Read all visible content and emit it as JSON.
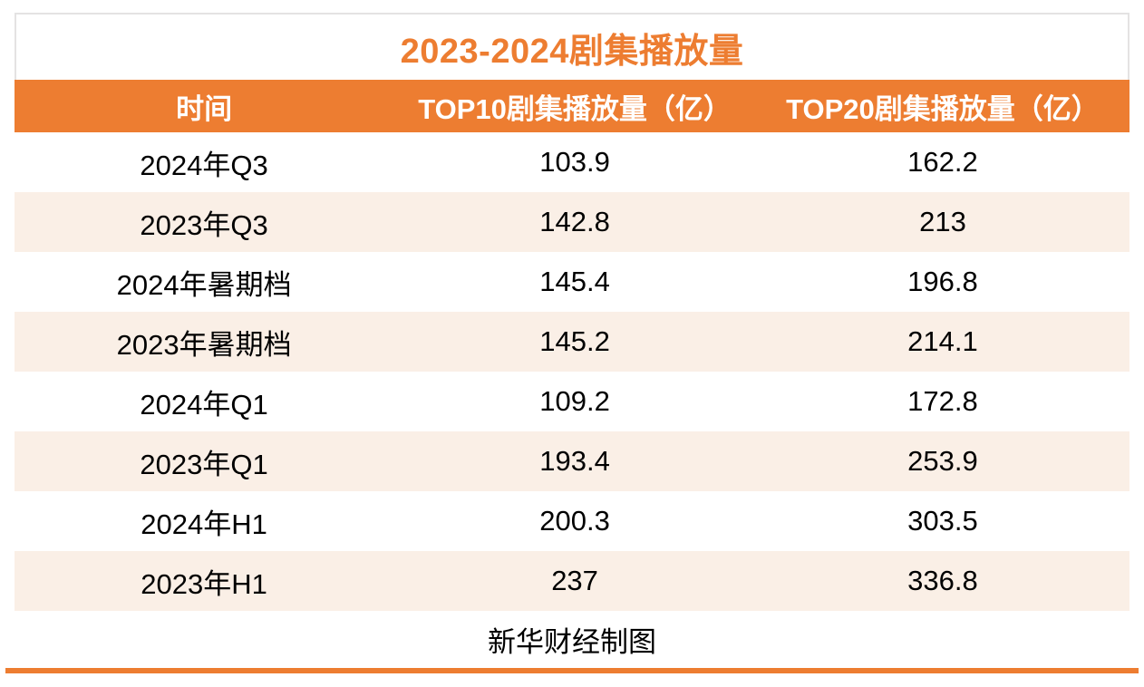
{
  "title": "2023-2024剧集播放量",
  "footer_note": "新华财经制图",
  "colors": {
    "accent_orange": "#ed7d31",
    "banded_row": "#faefe6",
    "header_text": "#ffffff",
    "body_text": "#000000",
    "title_border": "#e4e3e3"
  },
  "chart_data": {
    "type": "table",
    "title": "2023-2024剧集播放量",
    "columns": [
      "时间",
      "TOP10剧集播放量（亿）",
      "TOP20剧集播放量（亿）"
    ],
    "rows": [
      [
        "2024年Q3",
        "103.9",
        "162.2"
      ],
      [
        "2023年Q3",
        "142.8",
        "213"
      ],
      [
        "2024年暑期档",
        "145.4",
        "196.8"
      ],
      [
        "2023年暑期档",
        "145.2",
        "214.1"
      ],
      [
        "2024年Q1",
        "109.2",
        "172.8"
      ],
      [
        "2023年Q1",
        "193.4",
        "253.9"
      ],
      [
        "2024年H1",
        "200.3",
        "303.5"
      ],
      [
        "2023年H1",
        "237",
        "336.8"
      ]
    ],
    "source_note": "新华财经制图",
    "layout": {
      "banded_rows": true,
      "header_fill": "#ed7d31",
      "band_fill": "#faefe6",
      "grid": false
    }
  }
}
